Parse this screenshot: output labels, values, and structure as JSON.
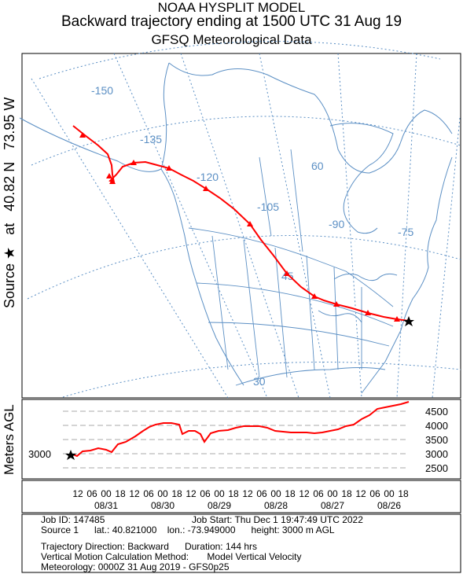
{
  "header": {
    "line1": "NOAA HYSPLIT MODEL",
    "line2": "Backward trajectory ending at 1500 UTC 31 Aug 19",
    "line3": "GFSQ Meteorological Data"
  },
  "side_label": {
    "source": "Source",
    "star": "★",
    "at": "at",
    "lat": "40.82 N",
    "lon": "73.95 W"
  },
  "map": {
    "longitude_labels": [
      "-150",
      "-135",
      "-120",
      "-105",
      "-90",
      "-75"
    ],
    "latitude_labels": [
      "60",
      "45",
      "30"
    ],
    "line_color": "#5b8fc4",
    "trajectory_color": "#ff0000"
  },
  "height_panel": {
    "ylabel": "Meters AGL",
    "source_height_label": "3000",
    "y_ticks": [
      "4500",
      "4000",
      "3500",
      "3000",
      "2500"
    ],
    "hour_ticks": [
      "12",
      "06",
      "00",
      "18",
      "12",
      "06",
      "00",
      "18",
      "12",
      "06",
      "00",
      "18",
      "12",
      "06",
      "00",
      "18",
      "12",
      "06",
      "00",
      "18",
      "12",
      "06",
      "00",
      "18"
    ],
    "date_labels": [
      "08/31",
      "08/30",
      "08/29",
      "08/28",
      "08/27",
      "08/26"
    ]
  },
  "info": {
    "job_id": "Job ID: 147485",
    "job_start": "Job Start: Thu Dec  1 19:47:49 UTC 2022",
    "source_line": "Source 1      lat.: 40.821000    lon.: -73.949000      height: 3000 m AGL",
    "direction": "Trajectory Direction: Backward      Duration: 144 hrs",
    "vertical": "Vertical Motion Calculation Method:       Model Vertical Velocity",
    "meteorology": "Meteorology: 0000Z 31 Aug 2019 - GFS0p25"
  }
}
